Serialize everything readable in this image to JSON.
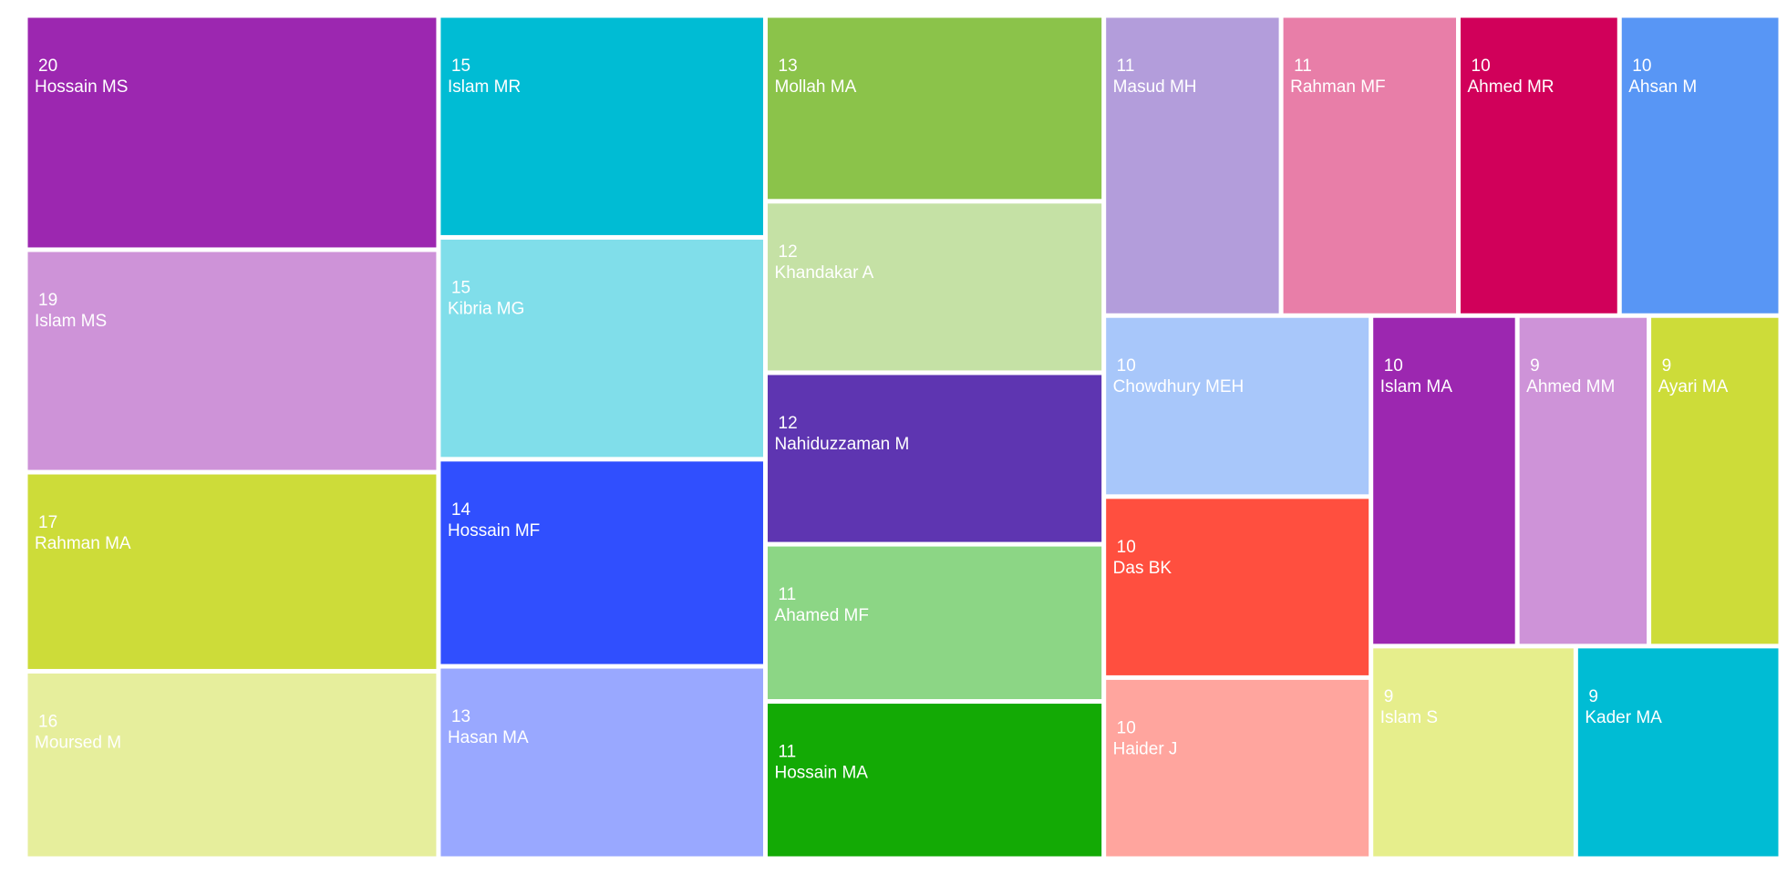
{
  "chart_data": {
    "type": "treemap",
    "categories": [
      "Hossain MS",
      "Islam MS",
      "Rahman MA",
      "Moursed M",
      "Islam MR",
      "Kibria MG",
      "Hossain MF",
      "Hasan MA",
      "Mollah MA",
      "Khandakar A",
      "Nahiduzzaman M",
      "Ahamed MF",
      "Hossain MA",
      "Masud MH",
      "Rahman MF",
      "Ahmed MR",
      "Ahsan M",
      "Chowdhury MEH",
      "Das BK",
      "Haider J",
      "Islam MA",
      "Ahmed MM",
      "Ayari MA",
      "Islam S",
      "Kader MA"
    ],
    "values": [
      20,
      19,
      17,
      16,
      15,
      15,
      14,
      13,
      13,
      12,
      12,
      11,
      11,
      11,
      11,
      10,
      10,
      10,
      10,
      10,
      10,
      9,
      9,
      9,
      9
    ],
    "colors": [
      "#9c27b0",
      "#ce93d8",
      "#cddc39",
      "#e6ee9c",
      "#00bcd4",
      "#80deea",
      "#304ffe",
      "#99a8ff",
      "#8bc34a",
      "#c5e1a5",
      "#5e35b1",
      "#8cd685",
      "#13aa05",
      "#b39ddb",
      "#e87ea8",
      "#d1005a",
      "#5896f5",
      "#a8c7fa",
      "#ff4f3f",
      "#ffa59e",
      "#9c27b0",
      "#ce93d8",
      "#cddc39",
      "#e6ee8c",
      "#00bcd4"
    ]
  }
}
